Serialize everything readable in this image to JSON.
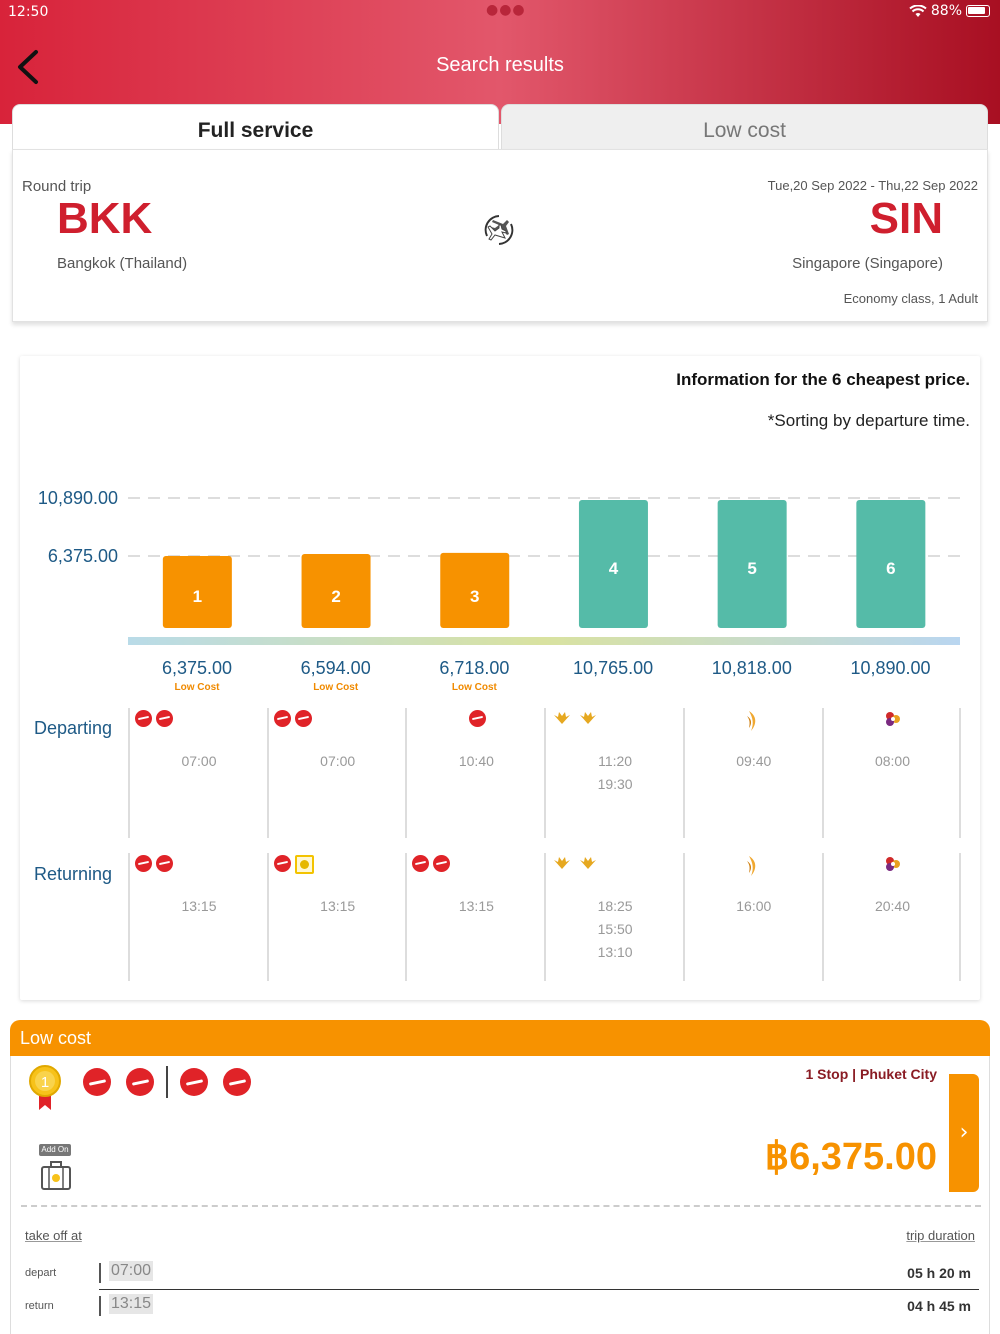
{
  "status": {
    "time": "12:50",
    "battery": "88%"
  },
  "header": {
    "title": "Search results"
  },
  "tabs": [
    {
      "label": "Full service",
      "active": true
    },
    {
      "label": "Low cost",
      "active": false
    }
  ],
  "trip": {
    "type": "Round trip",
    "origin_code": "BKK",
    "origin_city": "Bangkok (Thailand)",
    "dest_code": "SIN",
    "dest_city": "Singapore (Singapore)",
    "dates": "Tue,20 Sep 2022 - Thu,22 Sep 2022",
    "cabin": "Economy class,  1 Adult"
  },
  "chart_info": {
    "title": "Information for the 6 cheapest price.",
    "subtitle": "*Sorting by departure time."
  },
  "chart_data": {
    "type": "bar",
    "categories": [
      "1",
      "2",
      "3",
      "4",
      "5",
      "6"
    ],
    "values": [
      6375,
      6594,
      6718,
      10765,
      10818,
      10890
    ],
    "value_labels": [
      "6,375.00",
      "6,594.00",
      "6,718.00",
      "10,765.00",
      "10,818.00",
      "10,890.00"
    ],
    "fare_tags": [
      "Low Cost",
      "Low Cost",
      "Low Cost",
      "",
      "",
      ""
    ],
    "ytick_labels": [
      "10,890.00",
      "6,375.00"
    ],
    "yticks": [
      10890,
      6375
    ],
    "colors": {
      "low_cost": "#f79200",
      "full_service": "#55bba8"
    },
    "grid": true
  },
  "schedule": {
    "departing_label": "Departing",
    "returning_label": "Returning",
    "departing": [
      {
        "airline": "airasia",
        "logos": 2,
        "times": [
          "07:00"
        ]
      },
      {
        "airline": "airasia",
        "logos": 2,
        "times": [
          "07:00"
        ]
      },
      {
        "airline": "airasia",
        "logos": 1,
        "times": [
          "10:40"
        ]
      },
      {
        "airline": "malindo",
        "logos": 2,
        "times": [
          "11:20",
          "19:30"
        ]
      },
      {
        "airline": "singapore",
        "logos": 1,
        "times": [
          "09:40"
        ]
      },
      {
        "airline": "thai",
        "logos": 1,
        "times": [
          "08:00"
        ]
      }
    ],
    "returning": [
      {
        "airline": "airasia",
        "logos": 2,
        "times": [
          "13:15"
        ]
      },
      {
        "airline": "airasia-scoot",
        "logos": 2,
        "times": [
          "13:15"
        ]
      },
      {
        "airline": "airasia",
        "logos": 2,
        "times": [
          "13:15"
        ]
      },
      {
        "airline": "malindo",
        "logos": 2,
        "times": [
          "18:25",
          "15:50",
          "13:10"
        ]
      },
      {
        "airline": "singapore",
        "logos": 1,
        "times": [
          "16:00"
        ]
      },
      {
        "airline": "thai",
        "logos": 1,
        "times": [
          "20:40"
        ]
      }
    ]
  },
  "result": {
    "section_title": "Low cost",
    "rank": "1",
    "stops": "1 Stop | Phuket City",
    "price": "฿6,375.00",
    "addon_label": "Add On",
    "takeoff_label": "take off at",
    "duration_label": "trip duration",
    "legs": [
      {
        "label": "depart",
        "time": "07:00",
        "duration": "05 h 20 m"
      },
      {
        "label": "return",
        "time": "13:15",
        "duration": "04 h 45 m"
      }
    ]
  },
  "icons": {
    "back": "chevron-left-icon",
    "swap": "round-trip-plane-icon",
    "medal": "medal-icon",
    "addon": "luggage-icon",
    "next": "chevron-right-icon"
  }
}
